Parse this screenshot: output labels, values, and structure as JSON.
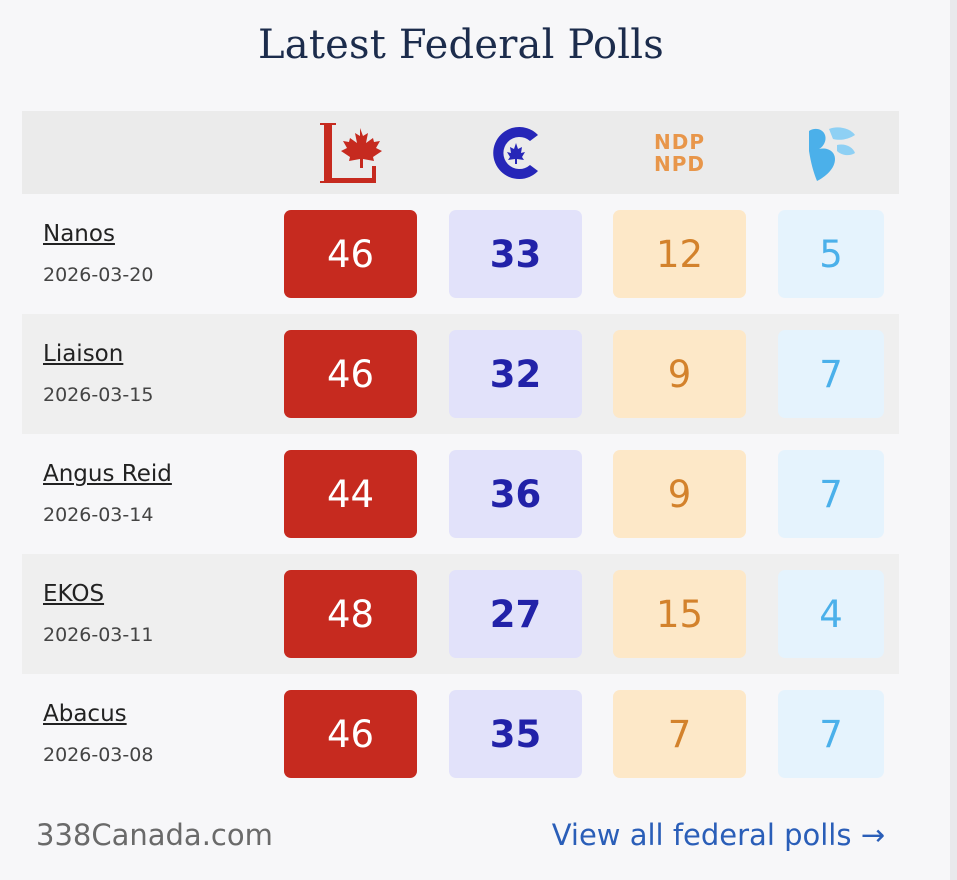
{
  "title": "Latest Federal Polls",
  "parties": [
    {
      "key": "lib",
      "icon": "liberal-logo-icon",
      "color": "#c62a1f"
    },
    {
      "key": "con",
      "icon": "conservative-logo-icon",
      "color": "#2222a8"
    },
    {
      "key": "ndp",
      "icon": "ndp-logo-icon",
      "color": "#d3822c",
      "logo_text": [
        "NDP",
        "NPD"
      ]
    },
    {
      "key": "bq",
      "icon": "bloc-quebecois-logo-icon",
      "color": "#4bb0ea"
    }
  ],
  "polls": [
    {
      "pollster": "Nanos",
      "date": "2026-03-20",
      "lib": "46",
      "con": "33",
      "ndp": "12",
      "bq": "5"
    },
    {
      "pollster": "Liaison",
      "date": "2026-03-15",
      "lib": "46",
      "con": "32",
      "ndp": "9",
      "bq": "7"
    },
    {
      "pollster": "Angus Reid",
      "date": "2026-03-14",
      "lib": "44",
      "con": "36",
      "ndp": "9",
      "bq": "7"
    },
    {
      "pollster": "EKOS",
      "date": "2026-03-11",
      "lib": "48",
      "con": "27",
      "ndp": "15",
      "bq": "4"
    },
    {
      "pollster": "Abacus",
      "date": "2026-03-08",
      "lib": "46",
      "con": "35",
      "ndp": "7",
      "bq": "7"
    }
  ],
  "footer": {
    "site": "338Canada.com",
    "link": "View all federal polls →"
  }
}
